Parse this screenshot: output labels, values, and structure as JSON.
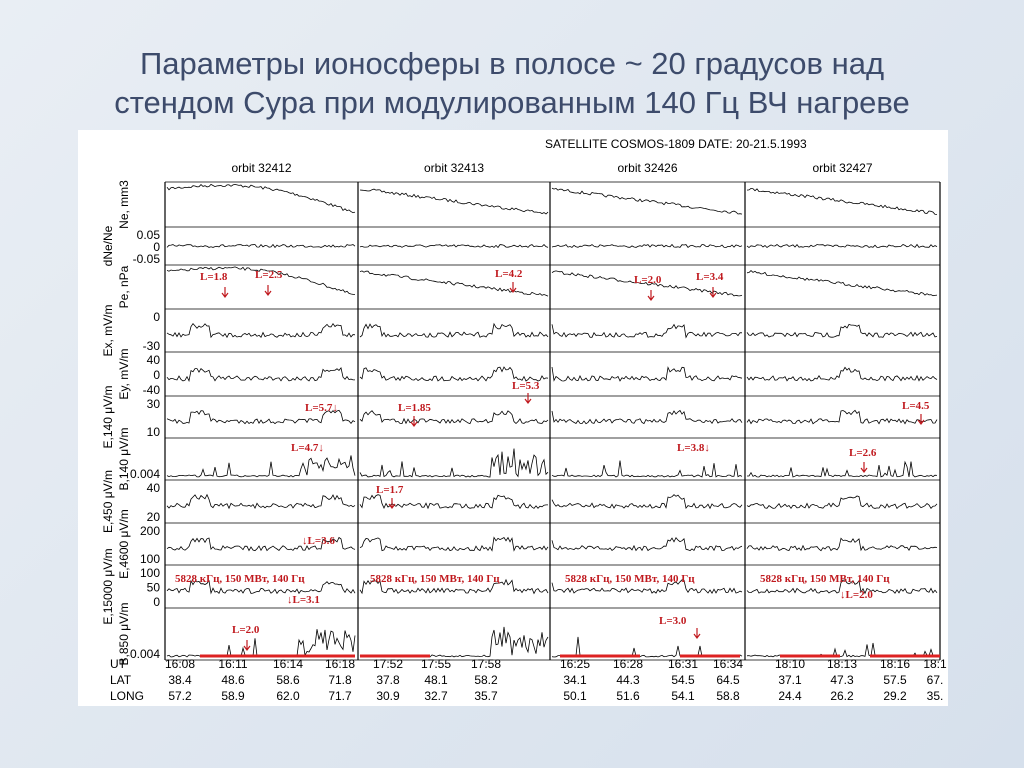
{
  "title": [
    "Параметры ионосферы в полосе ~ 20 градусов над",
    "стендом Сура при модулированным 140 Гц ВЧ нагреве"
  ],
  "figure": {
    "header": "SATELLITE  COSMOS-1809  DATE: 20-21.5.1993",
    "orbits": [
      "orbit  32412",
      "orbit  32413",
      "orbit  32426",
      "orbit  32427"
    ],
    "panels": [
      {
        "label": "Ne, mm3",
        "ticks": []
      },
      {
        "label": "dNe/Ne",
        "ticks": [
          "0.05",
          "0",
          "-0.05"
        ]
      },
      {
        "label": "Pe, nPa",
        "ticks": []
      },
      {
        "label": "Ex, mV/m",
        "ticks": [
          "0",
          "-30"
        ]
      },
      {
        "label": "Ey, mV/m",
        "ticks": [
          "40",
          "0",
          "-40"
        ]
      },
      {
        "label": "E,140 μV/m",
        "ticks": [
          "30",
          "10"
        ]
      },
      {
        "label": "B,140 μV/m",
        "ticks": [
          "0.004"
        ]
      },
      {
        "label": "E,450 μV/m",
        "ticks": [
          "40",
          "20"
        ]
      },
      {
        "label": "E,4600 μV/m",
        "ticks": [
          "200",
          "100"
        ]
      },
      {
        "label": "E,15000 μV/m",
        "ticks": [
          "100",
          "50",
          "0"
        ]
      },
      {
        "label": "B,850 μV/m",
        "ticks": [
          "0.004"
        ]
      }
    ],
    "annotations": [
      "L=1.8",
      "L=2.5",
      "L=4.2",
      "L=2.0",
      "L=3.4",
      "L=5.7↓",
      "L=1.85",
      "L=5.3",
      "L=4.5",
      "L=4.7↓",
      "L=3.8↓",
      "L=2.6",
      "L=1.7",
      "↓L=3.6",
      "5828 кГц, 150 МВт, 140 Гц",
      "5828 кГц, 150 МВт, 140 Гц",
      "5828 кГц, 150 МВт, 140 Гц",
      "5828 кГц, 150 МВт, 140 Гц",
      "↓L=3.1",
      "↓L=2.0",
      "L=2.0",
      "L=3.0"
    ],
    "table": {
      "row_labels": [
        "UT",
        "LAT",
        "LONG"
      ],
      "columns": [
        {
          "UT": [
            "16:08",
            "16:11",
            "16:14",
            "16:18"
          ],
          "LAT": [
            "38.4",
            "48.6",
            "58.6",
            "71.8"
          ],
          "LONG": [
            "57.2",
            "58.9",
            "62.0",
            "71.7"
          ]
        },
        {
          "UT": [
            "17:52",
            "17:55",
            "17:58"
          ],
          "LAT": [
            "37.8",
            "48.1",
            "58.2"
          ],
          "LONG": [
            "30.9",
            "32.7",
            "35.7"
          ]
        },
        {
          "UT": [
            "16:25",
            "16:28",
            "16:31",
            "16:34"
          ],
          "LAT": [
            "34.1",
            "44.3",
            "54.5",
            "64.5"
          ],
          "LONG": [
            "50.1",
            "51.6",
            "54.1",
            "58.8"
          ]
        },
        {
          "UT": [
            "18:10",
            "18:13",
            "18:16",
            "18:1"
          ],
          "LAT": [
            "37.1",
            "47.3",
            "57.5",
            "67."
          ],
          "LONG": [
            "24.4",
            "26.2",
            "29.2",
            "35."
          ]
        }
      ]
    }
  }
}
